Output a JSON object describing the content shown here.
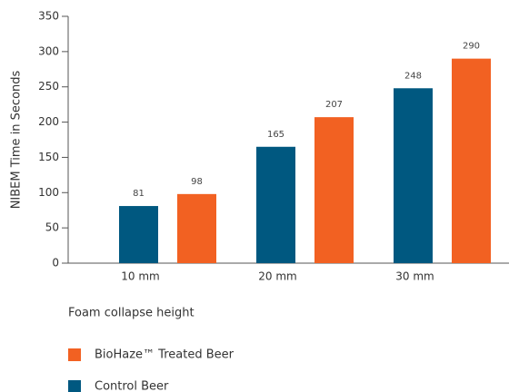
{
  "chart_data": {
    "type": "bar",
    "x_label": "Foam collapse height",
    "y_label": "NIBEM Time in Seconds",
    "categories": [
      "10 mm",
      "20 mm",
      "30 mm"
    ],
    "series": [
      {
        "name": "Control Beer",
        "color": "#005880",
        "values": [
          81,
          165,
          248
        ]
      },
      {
        "name": "BioHaze™ Treated Beer",
        "color": "#f26122",
        "values": [
          98,
          207,
          290
        ]
      }
    ],
    "ylim": [
      0,
      350
    ],
    "yticks": [
      0,
      50,
      100,
      150,
      200,
      250,
      300,
      350
    ],
    "grid": false
  }
}
